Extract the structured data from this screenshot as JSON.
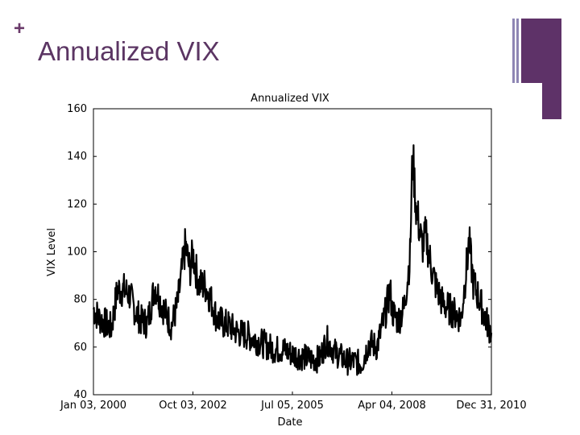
{
  "slide": {
    "bullet": "+",
    "title": "Annualized VIX"
  },
  "colors": {
    "title": "#5b3563",
    "accent_box": "#5e3268",
    "accent_line": "#8e86b4",
    "series": "#000000"
  },
  "chart_data": {
    "type": "line",
    "title": "Annualized VIX",
    "xlabel": "Date",
    "ylabel": "VIX Level",
    "ylim": [
      40,
      160
    ],
    "yticks": [
      40,
      60,
      80,
      100,
      120,
      140,
      160
    ],
    "xlim": [
      "2000-01-03",
      "2010-12-31"
    ],
    "xticks": [
      "Jan 03, 2000",
      "Oct 03, 2002",
      "Jul 05, 2005",
      "Apr 04, 2008",
      "Dec 31, 2010"
    ],
    "grid": false,
    "series": [
      {
        "x": [
          "2000-01-03",
          "2000-03-01",
          "2000-05-01",
          "2000-07-01",
          "2000-09-01",
          "2000-11-01",
          "2001-01-01",
          "2001-03-01",
          "2001-05-01",
          "2001-07-01",
          "2001-09-15",
          "2001-11-01",
          "2002-01-01",
          "2002-03-01",
          "2002-05-01",
          "2002-07-20",
          "2002-09-01",
          "2002-10-03",
          "2002-12-01",
          "2003-02-01",
          "2003-04-01",
          "2003-06-01",
          "2003-08-01",
          "2003-10-01",
          "2004-01-01",
          "2004-04-01",
          "2004-07-01",
          "2004-10-01",
          "2005-01-01",
          "2005-04-01",
          "2005-07-05",
          "2005-10-01",
          "2006-01-01",
          "2006-04-01",
          "2006-06-15",
          "2006-09-01",
          "2007-01-01",
          "2007-03-01",
          "2007-06-01",
          "2007-08-15",
          "2007-11-01",
          "2008-01-15",
          "2008-03-15",
          "2008-04-04",
          "2008-06-01",
          "2008-08-01",
          "2008-10-01",
          "2008-10-27",
          "2008-12-01",
          "2009-02-01",
          "2009-03-09",
          "2009-05-01",
          "2009-07-01",
          "2009-09-01",
          "2009-11-01",
          "2010-01-01",
          "2010-03-01",
          "2010-05-20",
          "2010-07-01",
          "2010-09-01",
          "2010-11-01",
          "2010-12-31"
        ],
        "values": [
          76,
          72,
          70,
          68,
          84,
          84,
          82,
          75,
          71,
          70,
          86,
          80,
          74,
          69,
          78,
          103,
          92,
          99,
          86,
          86,
          80,
          72,
          70,
          69,
          66,
          65,
          63,
          61,
          59,
          59,
          57,
          56,
          55,
          55,
          63,
          58,
          54,
          54,
          53,
          62,
          60,
          72,
          84,
          75,
          71,
          76,
          98,
          141,
          119,
          102,
          107,
          94,
          84,
          78,
          76,
          74,
          72,
          104,
          87,
          80,
          72,
          66
        ]
      }
    ]
  }
}
